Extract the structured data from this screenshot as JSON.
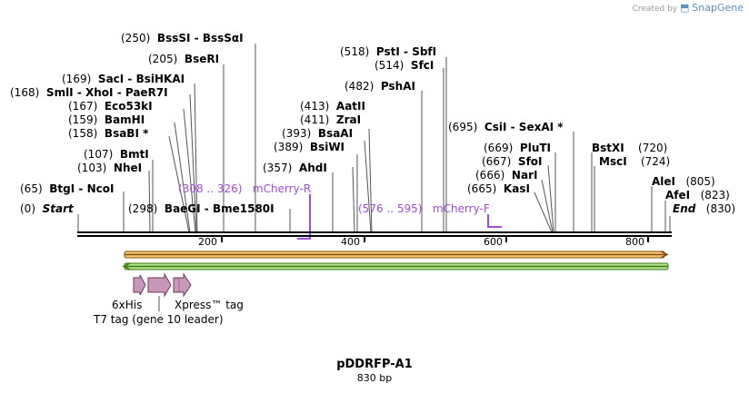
{
  "credit": {
    "prefix": "Created by",
    "brand": "SnapGene"
  },
  "plasmid": {
    "name": "pDDRFP-A1",
    "length": "830 bp"
  },
  "ticks": [
    "200",
    "400",
    "600",
    "800"
  ],
  "sites": [
    {
      "pos": "(250)",
      "name": "BssSI",
      "sep": " - ",
      "name2": "BssSαI"
    },
    {
      "pos": "(205)",
      "name": "BseRI"
    },
    {
      "pos": "(169)",
      "name": "SacI",
      "sep": " - ",
      "name2": "BsiHKAI"
    },
    {
      "pos": "(168)",
      "name": "SmlI",
      "sep": " - ",
      "name2": "XhoI",
      "sep2": " - ",
      "name3": "PaeR7I"
    },
    {
      "pos": "(167)",
      "name": "Eco53kI"
    },
    {
      "pos": "(159)",
      "name": "BamHI"
    },
    {
      "pos": "(158)",
      "name": "BsaBI *"
    },
    {
      "pos": "(107)",
      "name": "BmtI"
    },
    {
      "pos": "(103)",
      "name": "NheI"
    },
    {
      "pos": "(65)",
      "name": "BtgI",
      "sep": " - ",
      "name2": "NcoI"
    },
    {
      "pos": "(0)",
      "name": "Start",
      "italic": true
    },
    {
      "pos": "(298)",
      "name": "BaeGI",
      "sep": " - ",
      "name2": "Bme1580I"
    },
    {
      "pos": "(518)",
      "name": "PstI",
      "sep": " - ",
      "name2": "SbfI"
    },
    {
      "pos": "(514)",
      "name": "SfcI"
    },
    {
      "pos": "(482)",
      "name": "PshAI"
    },
    {
      "pos": "(413)",
      "name": "AatII"
    },
    {
      "pos": "(411)",
      "name": "ZraI"
    },
    {
      "pos": "(393)",
      "name": "BsaAI"
    },
    {
      "pos": "(389)",
      "name": "BsiWI"
    },
    {
      "pos": "(357)",
      "name": "AhdI"
    },
    {
      "pos": "(695)",
      "name": "CsiI",
      "sep": " - ",
      "name2": "SexAI *"
    },
    {
      "pos": "(669)",
      "name": "PluTI"
    },
    {
      "pos": "(667)",
      "name": "SfoI"
    },
    {
      "pos": "(666)",
      "name": "NarI"
    },
    {
      "pos": "(665)",
      "name": "KasI"
    },
    {
      "pos": "(720)",
      "name": "BstXI",
      "posRight": true
    },
    {
      "pos": "(724)",
      "name": "MscI",
      "posRight": true
    },
    {
      "pos": "(805)",
      "name": "AleI",
      "posRight": true
    },
    {
      "pos": "(823)",
      "name": "AfeI",
      "posRight": true
    },
    {
      "pos": "(830)",
      "name": "End",
      "posRight": true,
      "italic": true
    }
  ],
  "primers": [
    {
      "range": "(308 .. 326)",
      "name": "mCherry-R"
    },
    {
      "range": "(576 .. 595)",
      "name": "mCherry-F"
    }
  ],
  "features": {
    "his": "6xHis",
    "xpress": "Xpress™ tag",
    "t7": "T7 tag (gene 10 leader)"
  },
  "colors": {
    "primer": "#a04ce0",
    "orf_fill": "#f5c97a",
    "orf_stroke": "#8a4b08",
    "green_fill": "#b3e08a",
    "green_stroke": "#3c7a14",
    "feature_fill": "#c898b8",
    "feature_stroke": "#6e3a5c"
  }
}
